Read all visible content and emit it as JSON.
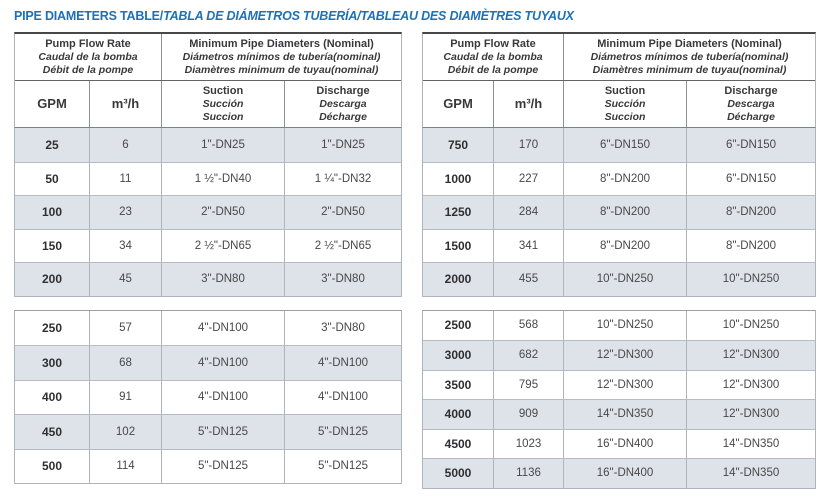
{
  "title": {
    "en": "PIPE DIAMETERS TABLE/",
    "translations": "TABLA DE DIÁMETROS TUBERÍA/TABLEAU DES DIAMÈTRES TUYAUX"
  },
  "colors": {
    "title_blue": "#1b72b8",
    "row_shade": "#dde3e8",
    "text_dark": "#39393b",
    "border_gray": "#aeb4ba"
  },
  "header": {
    "flow": {
      "en": "Pump Flow Rate",
      "es": "Caudal de la bomba",
      "fr": "Débit de la pompe"
    },
    "diameters": {
      "en": "Minimum Pipe Diameters (Nominal)",
      "es": "Diámetros mínimos de tubería(nominal)",
      "fr": "Diamètres minimum de tuyau(nominal)"
    },
    "gpm": "GPM",
    "m3h": "m³/h",
    "suction": {
      "en": "Suction",
      "es": "Succión",
      "fr": "Succion"
    },
    "discharge": {
      "en": "Discharge",
      "es": "Descarga",
      "fr": "Décharge"
    }
  },
  "columns": [
    "GPM",
    "m³/h",
    "Suction",
    "Discharge"
  ],
  "tables": {
    "left": {
      "block1": [
        [
          "25",
          "6",
          "1\"-DN25",
          "1\"-DN25"
        ],
        [
          "50",
          "11",
          "1 ½\"-DN40",
          "1 ¼\"-DN32"
        ],
        [
          "100",
          "23",
          "2\"-DN50",
          "2\"-DN50"
        ],
        [
          "150",
          "34",
          "2 ½\"-DN65",
          "2 ½\"-DN65"
        ],
        [
          "200",
          "45",
          "3\"-DN80",
          "3\"-DN80"
        ]
      ],
      "block2": [
        [
          "250",
          "57",
          "4\"-DN100",
          "3\"-DN80"
        ],
        [
          "300",
          "68",
          "4\"-DN100",
          "4\"-DN100"
        ],
        [
          "400",
          "91",
          "4\"-DN100",
          "4\"-DN100"
        ],
        [
          "450",
          "102",
          "5\"-DN125",
          "5\"-DN125"
        ],
        [
          "500",
          "114",
          "5\"-DN125",
          "5\"-DN125"
        ]
      ]
    },
    "right": {
      "block1": [
        [
          "750",
          "170",
          "6\"-DN150",
          "6\"-DN150"
        ],
        [
          "1000",
          "227",
          "8\"-DN200",
          "6\"-DN150"
        ],
        [
          "1250",
          "284",
          "8\"-DN200",
          "8\"-DN200"
        ],
        [
          "1500",
          "341",
          "8\"-DN200",
          "8\"-DN200"
        ],
        [
          "2000",
          "455",
          "10\"-DN250",
          "10\"-DN250"
        ]
      ],
      "block2": [
        [
          "2500",
          "568",
          "10\"-DN250",
          "10\"-DN250"
        ],
        [
          "3000",
          "682",
          "12\"-DN300",
          "12\"-DN300"
        ],
        [
          "3500",
          "795",
          "12\"-DN300",
          "12\"-DN300"
        ],
        [
          "4000",
          "909",
          "14\"-DN350",
          "12\"-DN300"
        ],
        [
          "4500",
          "1023",
          "16\"-DN400",
          "14\"-DN350"
        ],
        [
          "5000",
          "1136",
          "16\"-DN400",
          "14\"-DN350"
        ]
      ]
    }
  }
}
